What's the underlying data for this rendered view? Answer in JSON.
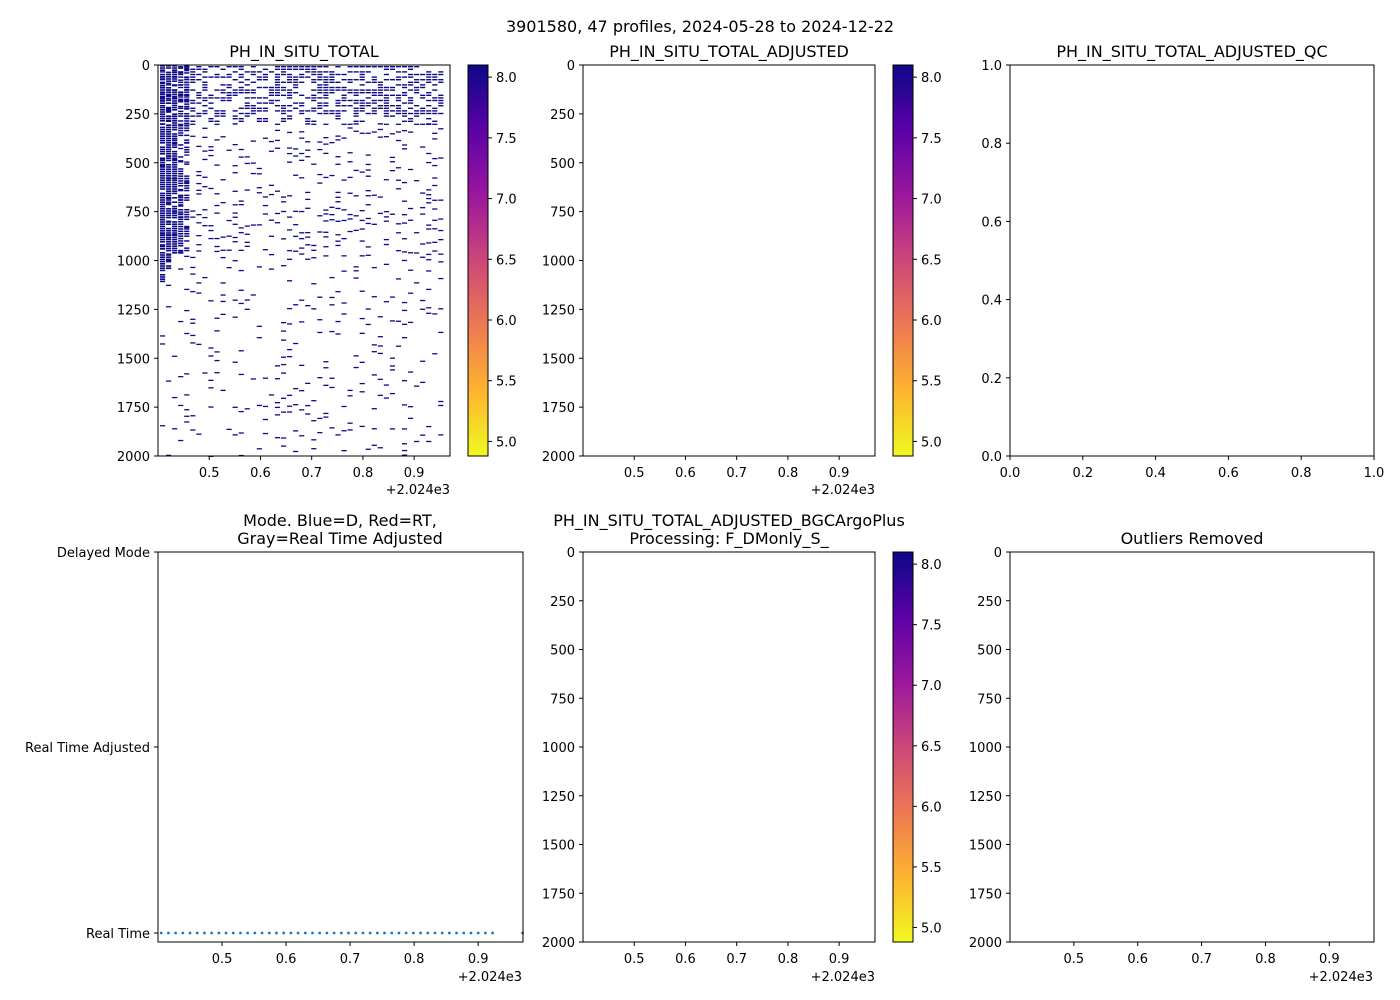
{
  "suptitle": "3901580, 47 profiles, 2024-05-28 to 2024-12-22",
  "colorbar": {
    "colors": [
      "#f0f921",
      "#fdb42f",
      "#ed7953",
      "#cc4778",
      "#9c179e",
      "#5c01a6",
      "#0d0887"
    ],
    "ticks": [
      5.0,
      5.5,
      6.0,
      6.5,
      7.0,
      7.5,
      8.0
    ],
    "tick_labels": [
      "5.0",
      "5.5",
      "6.0",
      "6.5",
      "7.0",
      "7.5",
      "8.0"
    ],
    "range": [
      4.88,
      8.1
    ]
  },
  "chart_data": [
    {
      "id": "ph-in-situ-total",
      "type": "heatmap",
      "title": "PH_IN_SITU_TOTAL",
      "xlim": [
        2024.4,
        2024.97
      ],
      "ylim": [
        2000,
        0
      ],
      "xticks": [
        2024.5,
        2024.6,
        2024.7,
        2024.8,
        2024.9
      ],
      "xtick_labels": [
        "0.5",
        "0.6",
        "0.7",
        "0.8",
        "0.9"
      ],
      "x_offset_label": "+2.024e3",
      "yticks": [
        0,
        250,
        500,
        750,
        1000,
        1250,
        1500,
        1750,
        2000
      ],
      "ytick_labels": [
        "0",
        "250",
        "500",
        "750",
        "1000",
        "1250",
        "1500",
        "1750",
        "2000"
      ],
      "value_approx": 8.05,
      "profile_count": 47,
      "date_range": [
        "2024-05-28",
        "2024-12-22"
      ],
      "dense_layer_depth": [
        0,
        300
      ],
      "early_profiles_deep_coverage": [
        0,
        1120
      ],
      "colorbar": true
    },
    {
      "id": "ph-in-situ-total-adjusted",
      "type": "heatmap",
      "title": "PH_IN_SITU_TOTAL_ADJUSTED",
      "xlim": [
        2024.4,
        2024.97
      ],
      "ylim": [
        2000,
        0
      ],
      "xticks": [
        2024.5,
        2024.6,
        2024.7,
        2024.8,
        2024.9
      ],
      "xtick_labels": [
        "0.5",
        "0.6",
        "0.7",
        "0.8",
        "0.9"
      ],
      "x_offset_label": "+2.024e3",
      "yticks": [
        0,
        250,
        500,
        750,
        1000,
        1250,
        1500,
        1750,
        2000
      ],
      "ytick_labels": [
        "0",
        "250",
        "500",
        "750",
        "1000",
        "1250",
        "1500",
        "1750",
        "2000"
      ],
      "colorbar": true
    },
    {
      "id": "ph-in-situ-total-adjusted-qc",
      "type": "scatter",
      "title": "PH_IN_SITU_TOTAL_ADJUSTED_QC",
      "xlim": [
        0,
        1
      ],
      "ylim": [
        0,
        1
      ],
      "xticks": [
        0,
        0.2,
        0.4,
        0.6,
        0.8,
        1.0
      ],
      "xtick_labels": [
        "0.0",
        "0.2",
        "0.4",
        "0.6",
        "0.8",
        "1.0"
      ],
      "yticks": [
        0,
        0.2,
        0.4,
        0.6,
        0.8,
        1.0
      ],
      "ytick_labels": [
        "0.0",
        "0.2",
        "0.4",
        "0.6",
        "0.8",
        "1.0"
      ]
    },
    {
      "id": "mode",
      "type": "scatter",
      "title_lines": [
        "Mode. Blue=D, Red=RT,",
        "Gray=Real Time Adjusted"
      ],
      "xlim": [
        2024.4,
        2024.97
      ],
      "ylim": [
        0,
        2
      ],
      "xticks": [
        2024.5,
        2024.6,
        2024.7,
        2024.8,
        2024.9
      ],
      "xtick_labels": [
        "0.5",
        "0.6",
        "0.7",
        "0.8",
        "0.9"
      ],
      "x_offset_label": "+2.024e3",
      "ycategories": [
        "Real Time",
        "Real Time Adjusted",
        "Delayed Mode"
      ],
      "points_x_start": 2024.405,
      "points_x_step": 0.01125,
      "points_count": 47,
      "points_y": 0,
      "marker_color": "#1f77b4"
    },
    {
      "id": "bgcargoplus",
      "type": "heatmap",
      "title_lines": [
        "PH_IN_SITU_TOTAL_ADJUSTED_BGCArgoPlus",
        "Processing: F_DMonly_S_"
      ],
      "xlim": [
        2024.4,
        2024.97
      ],
      "ylim": [
        2000,
        0
      ],
      "xticks": [
        2024.5,
        2024.6,
        2024.7,
        2024.8,
        2024.9
      ],
      "xtick_labels": [
        "0.5",
        "0.6",
        "0.7",
        "0.8",
        "0.9"
      ],
      "x_offset_label": "+2.024e3",
      "yticks": [
        0,
        250,
        500,
        750,
        1000,
        1250,
        1500,
        1750,
        2000
      ],
      "ytick_labels": [
        "0",
        "250",
        "500",
        "750",
        "1000",
        "1250",
        "1500",
        "1750",
        "2000"
      ],
      "colorbar": true
    },
    {
      "id": "outliers-removed",
      "type": "heatmap",
      "title": "Outliers Removed",
      "xlim": [
        2024.4,
        2024.97
      ],
      "ylim": [
        2000,
        0
      ],
      "xticks": [
        2024.5,
        2024.6,
        2024.7,
        2024.8,
        2024.9
      ],
      "xtick_labels": [
        "0.5",
        "0.6",
        "0.7",
        "0.8",
        "0.9"
      ],
      "x_offset_label": "+2.024e3",
      "yticks": [
        0,
        250,
        500,
        750,
        1000,
        1250,
        1500,
        1750,
        2000
      ],
      "ytick_labels": [
        "0",
        "250",
        "500",
        "750",
        "1000",
        "1250",
        "1500",
        "1750",
        "2000"
      ]
    }
  ]
}
